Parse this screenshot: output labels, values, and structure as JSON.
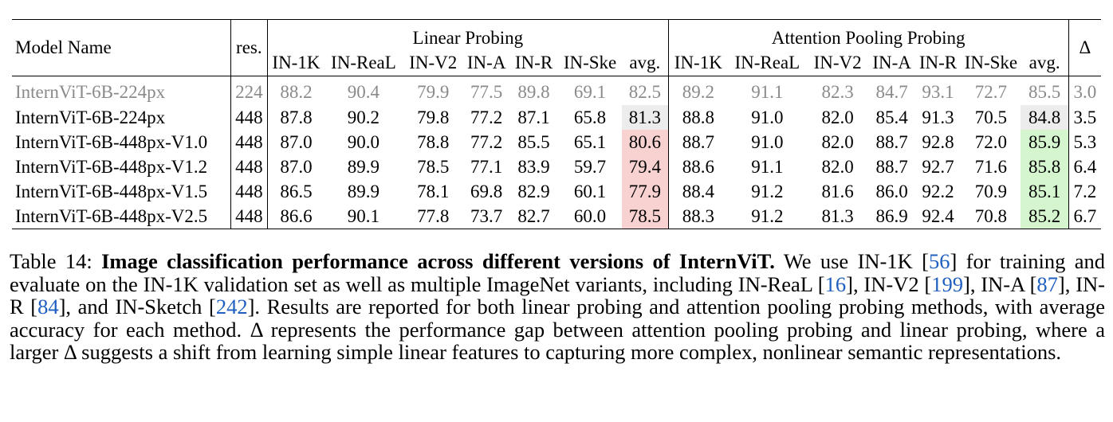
{
  "table": {
    "columns": {
      "model_name": "Model Name",
      "res": "res.",
      "group_linear": "Linear Probing",
      "group_attention": "Attention Pooling Probing",
      "delta": "Δ",
      "sub": [
        "IN-1K",
        "IN-ReaL",
        "IN-V2",
        "IN-A",
        "IN-R",
        "IN-Ske",
        "avg."
      ]
    },
    "rows": [
      {
        "name": "InternViT-6B-224px",
        "res": "224",
        "linear": [
          "88.2",
          "90.4",
          "79.9",
          "77.5",
          "89.8",
          "69.1",
          "82.5"
        ],
        "attention": [
          "89.2",
          "91.1",
          "82.3",
          "84.7",
          "93.1",
          "72.7",
          "85.5"
        ],
        "delta": "3.0",
        "style": "gray",
        "avg_highlight": "none"
      },
      {
        "name": "InternViT-6B-224px",
        "res": "448",
        "linear": [
          "87.8",
          "90.2",
          "79.8",
          "77.2",
          "87.1",
          "65.8",
          "81.3"
        ],
        "attention": [
          "88.8",
          "91.0",
          "82.0",
          "85.4",
          "91.3",
          "70.5",
          "84.8"
        ],
        "delta": "3.5",
        "style": "normal",
        "avg_highlight": "gray"
      },
      {
        "name": "InternViT-6B-448px-V1.0",
        "res": "448",
        "linear": [
          "87.0",
          "90.0",
          "78.8",
          "77.2",
          "85.5",
          "65.1",
          "80.6"
        ],
        "attention": [
          "88.7",
          "91.0",
          "82.0",
          "88.7",
          "92.8",
          "72.0",
          "85.9"
        ],
        "delta": "5.3",
        "style": "normal",
        "avg_highlight": "color"
      },
      {
        "name": "InternViT-6B-448px-V1.2",
        "res": "448",
        "linear": [
          "87.0",
          "89.9",
          "78.5",
          "77.1",
          "83.9",
          "59.7",
          "79.4"
        ],
        "attention": [
          "88.6",
          "91.1",
          "82.0",
          "88.7",
          "92.7",
          "71.6",
          "85.8"
        ],
        "delta": "6.4",
        "style": "normal",
        "avg_highlight": "color"
      },
      {
        "name": "InternViT-6B-448px-V1.5",
        "res": "448",
        "linear": [
          "86.5",
          "89.9",
          "78.1",
          "69.8",
          "82.9",
          "60.1",
          "77.9"
        ],
        "attention": [
          "88.4",
          "91.2",
          "81.6",
          "86.0",
          "92.2",
          "70.9",
          "85.1"
        ],
        "delta": "7.2",
        "style": "normal",
        "avg_highlight": "color"
      },
      {
        "name": "InternViT-6B-448px-V2.5",
        "res": "448",
        "linear": [
          "86.6",
          "90.1",
          "77.8",
          "73.7",
          "82.7",
          "60.0",
          "78.5"
        ],
        "attention": [
          "88.3",
          "91.2",
          "81.3",
          "86.9",
          "92.4",
          "70.8",
          "85.2"
        ],
        "delta": "6.7",
        "style": "normal",
        "avg_highlight": "color"
      }
    ]
  },
  "caption": {
    "label": "Table 14:",
    "title": "Image classification performance across different versions of InternViT.",
    "t1": "We use IN-1K [",
    "r1": "56",
    "t2": "] for training and evaluate on the IN-1K validation set as well as multiple ImageNet variants, including IN-ReaL [",
    "r2": "16",
    "t3": "], IN-V2 [",
    "r3": "199",
    "t4": "], IN-A [",
    "r4": "87",
    "t5": "], IN-R [",
    "r5": "84",
    "t6": "], and IN-Sketch [",
    "r6": "242",
    "t7": "].  Results are reported for both linear probing and attention pooling probing methods, with average accuracy for each method. Δ represents the performance gap between attention pooling probing and linear probing, where a larger Δ suggests a shift from learning simple linear features to capturing more complex, nonlinear semantic representations."
  }
}
